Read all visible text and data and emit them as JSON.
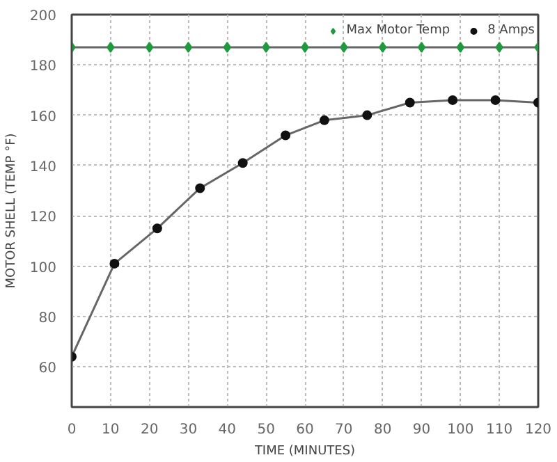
{
  "chart_data": {
    "type": "line",
    "xlabel": "TIME (MINUTES)",
    "ylabel": "MOTOR SHELL (TEMP °F)",
    "xlim": [
      0,
      120
    ],
    "xticks": [
      0,
      10,
      20,
      30,
      40,
      50,
      60,
      70,
      80,
      90,
      100,
      110,
      120
    ],
    "ylim": [
      44,
      200
    ],
    "yticks": [
      60,
      80,
      100,
      120,
      140,
      160,
      180,
      200
    ],
    "grid": true,
    "legend": "top right",
    "series": [
      {
        "name": "Max Motor Temp",
        "color": "#1f9a3c",
        "marker": "diamond",
        "x": [
          0,
          10,
          20,
          30,
          40,
          50,
          60,
          70,
          80,
          90,
          100,
          110,
          120
        ],
        "values": [
          187,
          187,
          187,
          187,
          187,
          187,
          187,
          187,
          187,
          187,
          187,
          187,
          187
        ]
      },
      {
        "name": "8 Amps",
        "color": "#111111",
        "marker": "circle",
        "x": [
          0,
          11,
          22,
          33,
          44,
          55,
          65,
          76,
          87,
          98,
          109,
          120
        ],
        "values": [
          64,
          101,
          115,
          131,
          141,
          152,
          158,
          160,
          165,
          166,
          166,
          165
        ]
      }
    ]
  }
}
